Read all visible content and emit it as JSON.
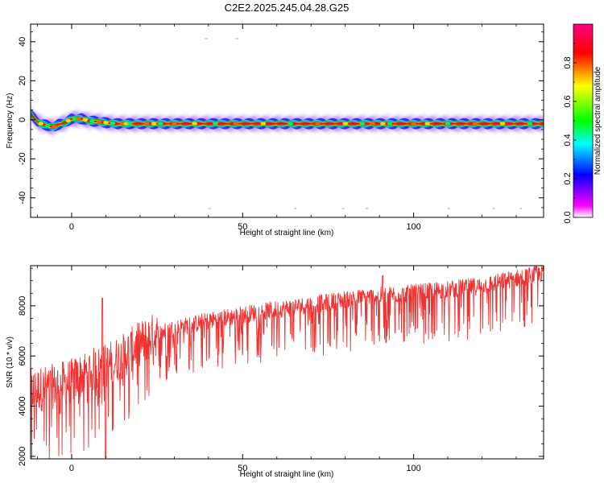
{
  "title": "C2E2.2025.245.04.28.G25",
  "chart_data": [
    {
      "type": "heatmap",
      "name": "spectrogram",
      "title": "C2E2.2025.245.04.28.G25",
      "xlabel": "Height of straight line (km)",
      "ylabel": "Frequency (Hz)",
      "xlim": [
        -12,
        138
      ],
      "ylim": [
        -50,
        49
      ],
      "xticks": [
        0,
        50,
        100
      ],
      "xtick_labels": [
        "0",
        "50",
        "100"
      ],
      "yticks": [
        -40,
        -20,
        0,
        20,
        40
      ],
      "ytick_labels": [
        "-40",
        "-20",
        "0",
        "20",
        "40"
      ],
      "ridge": {
        "x": [
          -12,
          -11,
          -10,
          -9,
          -8,
          -7,
          -6,
          -5,
          -4,
          -2,
          0,
          3,
          5,
          8,
          10,
          13,
          16,
          20,
          30,
          50,
          70,
          90,
          110,
          138
        ],
        "y": [
          3,
          1,
          -1,
          -2,
          -2.5,
          -3,
          -3.5,
          -3.5,
          -2.5,
          -1.5,
          0.5,
          0.5,
          -0.5,
          -1,
          -1.5,
          -2,
          -2,
          -2,
          -2,
          -2,
          -2,
          -2,
          -2,
          -2
        ]
      },
      "colorbar": {
        "label": "Normalized spectral amplitude",
        "range": [
          0.0,
          1.0
        ],
        "ticks": [
          0.0,
          0.2,
          0.4,
          0.6,
          0.8
        ],
        "tick_labels": [
          "0.0",
          "0.2",
          "0.4",
          "0.6",
          "0.8"
        ],
        "colors": [
          "#ffffff",
          "#ff00ff",
          "#0000ff",
          "#00ffff",
          "#00ff00",
          "#ffff00",
          "#ff0000",
          "#ff0080"
        ]
      }
    },
    {
      "type": "line",
      "name": "snr",
      "xlabel": "Height of straight line (km)",
      "ylabel": "SNR (10 * v/v)",
      "xlim": [
        -12,
        138
      ],
      "ylim": [
        1900,
        9600
      ],
      "xticks": [
        0,
        50,
        100
      ],
      "xtick_labels": [
        "0",
        "50",
        "100"
      ],
      "yticks": [
        2000,
        4000,
        6000,
        8000
      ],
      "ytick_labels": [
        "2000",
        "4000",
        "6000",
        "8000"
      ],
      "color": "#ee3333",
      "trend": {
        "x": [
          -12,
          -5,
          0,
          5,
          10,
          15,
          20,
          25,
          30,
          40,
          50,
          60,
          70,
          80,
          90,
          100,
          110,
          120,
          130,
          138
        ],
        "y": [
          4600,
          4800,
          5000,
          5400,
          5600,
          6000,
          6500,
          6900,
          7100,
          7400,
          7650,
          7850,
          8050,
          8250,
          8400,
          8500,
          8650,
          8800,
          9100,
          9300
        ]
      },
      "dip_depth": 1500
    }
  ]
}
